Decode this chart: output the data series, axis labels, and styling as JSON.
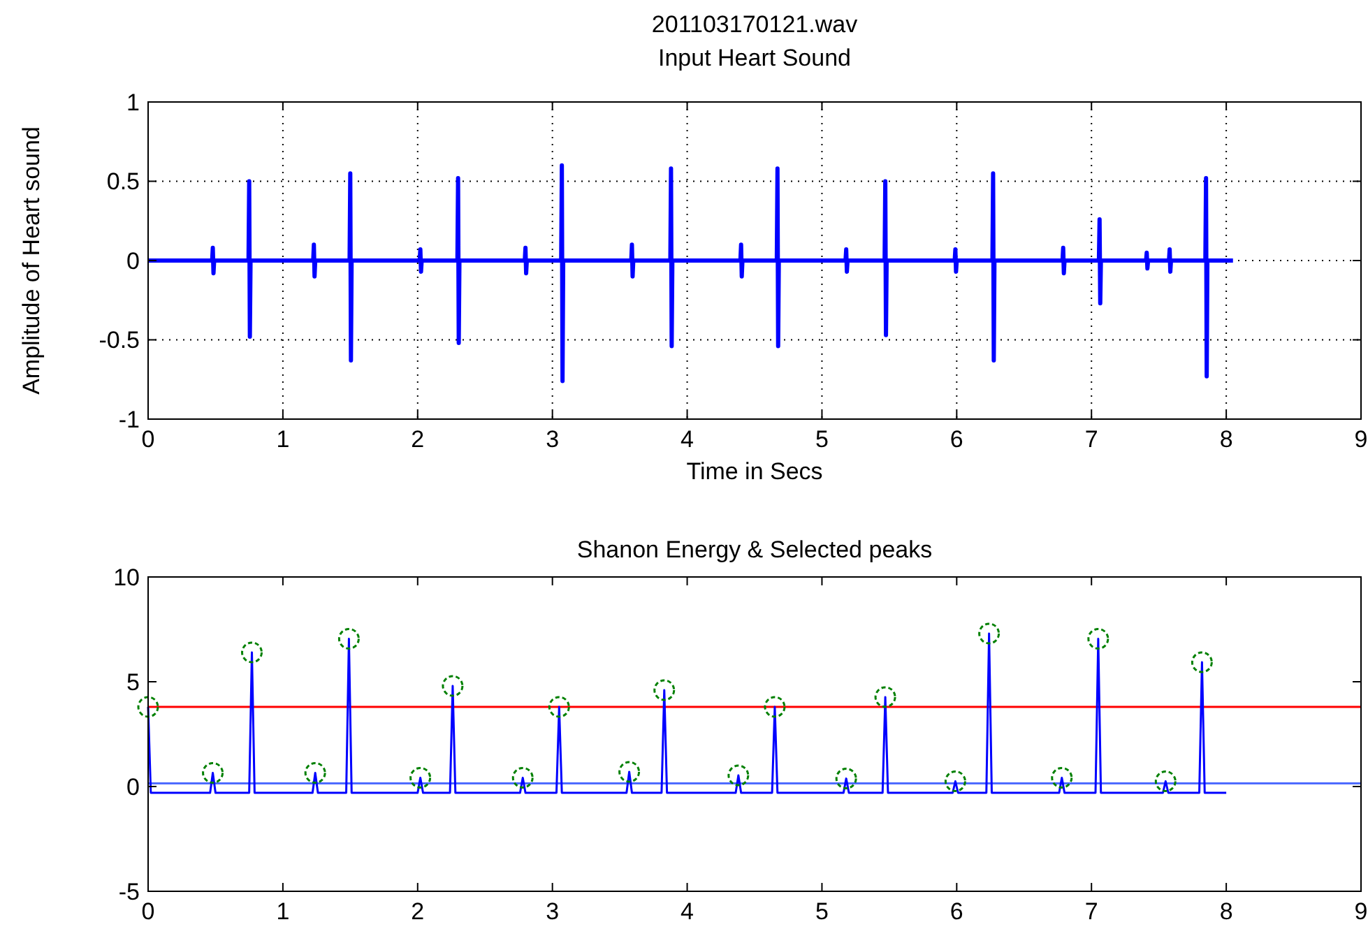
{
  "chart_data": [
    {
      "type": "line",
      "title": "201103170121.wav",
      "subtitle": "Input Heart Sound",
      "xlabel": "Time in Secs",
      "ylabel": "Amplitude of Heart sound",
      "xlim": [
        0,
        9
      ],
      "ylim": [
        -1,
        1
      ],
      "xticks": [
        0,
        1,
        2,
        3,
        4,
        5,
        6,
        7,
        8,
        9
      ],
      "yticks": [
        -1,
        -0.5,
        0,
        0.5,
        1
      ],
      "grid": true,
      "series": [
        {
          "color": "#0000ff",
          "marker": "none",
          "line_style": "solid",
          "x": [
            0,
            0.475,
            0.48,
            0.485,
            0.49,
            0.745,
            0.75,
            0.755,
            0.76,
            1.225,
            1.23,
            1.235,
            1.24,
            1.495,
            1.5,
            1.505,
            1.51,
            2.015,
            2.02,
            2.025,
            2.03,
            2.295,
            2.3,
            2.305,
            2.31,
            2.795,
            2.8,
            2.805,
            2.81,
            3.065,
            3.07,
            3.075,
            3.08,
            3.585,
            3.59,
            3.595,
            3.6,
            3.875,
            3.88,
            3.885,
            3.89,
            4.395,
            4.4,
            4.405,
            4.41,
            4.665,
            4.67,
            4.675,
            4.68,
            5.175,
            5.18,
            5.185,
            5.19,
            5.465,
            5.47,
            5.475,
            5.48,
            5.985,
            5.99,
            5.995,
            6,
            6.265,
            6.27,
            6.275,
            6.28,
            6.785,
            6.79,
            6.795,
            6.8,
            7.055,
            7.06,
            7.065,
            7.07,
            7.405,
            7.41,
            7.415,
            7.42,
            7.575,
            7.58,
            7.585,
            7.59,
            7.845,
            7.85,
            7.855,
            7.86,
            8.05
          ],
          "values": [
            0,
            0,
            0.08,
            -0.08,
            0,
            0,
            0.5,
            -0.48,
            0,
            0,
            0.1,
            -0.1,
            0,
            0,
            0.55,
            -0.63,
            0,
            0,
            0.07,
            -0.07,
            0,
            0,
            0.52,
            -0.52,
            0,
            0,
            0.08,
            -0.08,
            0,
            0,
            0.6,
            -0.76,
            0,
            0,
            0.1,
            -0.1,
            0,
            0,
            0.58,
            -0.54,
            0,
            0,
            0.1,
            -0.1,
            0,
            0,
            0.58,
            -0.54,
            0,
            0,
            0.07,
            -0.07,
            0,
            0,
            0.5,
            -0.47,
            0,
            0,
            0.07,
            -0.07,
            0,
            0,
            0.55,
            -0.63,
            0,
            0,
            0.08,
            -0.08,
            0,
            0,
            0.26,
            -0.27,
            0,
            0,
            0.05,
            -0.05,
            0,
            0,
            0.07,
            -0.07,
            0,
            0,
            0.52,
            -0.73,
            0,
            0
          ]
        }
      ]
    },
    {
      "type": "line",
      "title": "Shanon Energy & Selected peaks",
      "xlim": [
        0,
        9
      ],
      "ylim": [
        -5,
        10
      ],
      "xticks": [
        0,
        1,
        2,
        3,
        4,
        5,
        6,
        7,
        8,
        9
      ],
      "yticks": [
        -5,
        0,
        5,
        10
      ],
      "grid": false,
      "ref_lines": [
        {
          "axis": "y",
          "value": 3.8,
          "color": "#ff0000",
          "line_style": "solid"
        },
        {
          "axis": "y",
          "value": 0.15,
          "color": "#4d6bff",
          "line_style": "solid"
        }
      ],
      "series": [
        {
          "color": "#0000ff",
          "marker": "none",
          "line_style": "solid",
          "x": [
            0,
            0.02,
            0.46,
            0.48,
            0.5,
            0.75,
            0.77,
            0.79,
            1.22,
            1.24,
            1.26,
            1.47,
            1.49,
            1.51,
            2,
            2.02,
            2.04,
            2.24,
            2.26,
            2.28,
            2.76,
            2.78,
            2.8,
            3.03,
            3.05,
            3.07,
            3.55,
            3.57,
            3.59,
            3.81,
            3.83,
            3.85,
            4.36,
            4.38,
            4.4,
            4.63,
            4.65,
            4.67,
            5.16,
            5.18,
            5.2,
            5.45,
            5.47,
            5.49,
            5.97,
            5.99,
            6.01,
            6.22,
            6.24,
            6.26,
            6.76,
            6.78,
            6.8,
            7.03,
            7.05,
            7.07,
            7.53,
            7.55,
            7.57,
            7.8,
            7.82,
            7.84,
            8
          ],
          "values": [
            3.8,
            -0.3,
            -0.3,
            0.65,
            -0.3,
            -0.3,
            6.4,
            -0.3,
            -0.3,
            0.65,
            -0.3,
            -0.3,
            7.05,
            -0.3,
            -0.3,
            0.42,
            -0.3,
            -0.3,
            4.8,
            -0.3,
            -0.3,
            0.42,
            -0.3,
            -0.3,
            3.8,
            -0.3,
            -0.3,
            0.7,
            -0.3,
            -0.3,
            4.6,
            -0.3,
            -0.3,
            0.53,
            -0.3,
            -0.3,
            3.8,
            -0.3,
            -0.3,
            0.38,
            -0.3,
            -0.3,
            4.27,
            -0.3,
            -0.3,
            0.25,
            -0.3,
            -0.3,
            7.3,
            -0.3,
            -0.3,
            0.42,
            -0.3,
            -0.3,
            7.05,
            -0.3,
            -0.3,
            0.25,
            -0.3,
            -0.3,
            5.93,
            -0.3,
            -0.3
          ]
        },
        {
          "type": "scatter",
          "color": "#008000",
          "marker": "circle",
          "x": [
            0,
            0.48,
            0.77,
            1.24,
            1.49,
            2.02,
            2.26,
            2.78,
            3.05,
            3.57,
            3.83,
            4.38,
            4.65,
            5.18,
            5.47,
            5.99,
            6.24,
            6.78,
            7.05,
            7.55,
            7.82
          ],
          "values": [
            3.8,
            0.65,
            6.4,
            0.65,
            7.05,
            0.42,
            4.8,
            0.42,
            3.8,
            0.7,
            4.6,
            0.53,
            3.8,
            0.38,
            4.27,
            0.25,
            7.3,
            0.42,
            7.05,
            0.25,
            5.93
          ]
        }
      ]
    }
  ]
}
